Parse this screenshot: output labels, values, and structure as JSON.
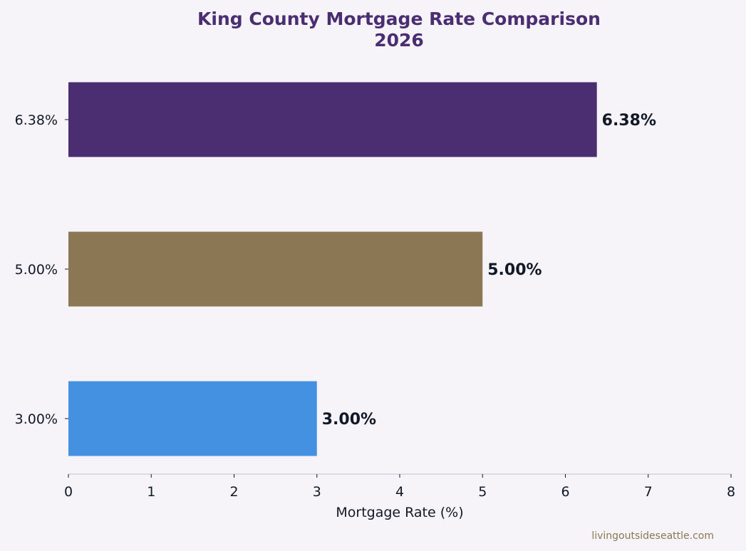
{
  "chart_data": {
    "type": "bar",
    "orientation": "horizontal",
    "title": "King County Mortgage Rate Comparison",
    "subtitle": "2026",
    "xlabel": "Mortgage Rate (%)",
    "ylabel": "",
    "xlim": [
      0,
      8
    ],
    "xticks": [
      "0",
      "1",
      "2",
      "3",
      "4",
      "5",
      "6",
      "7",
      "8"
    ],
    "categories": [
      "6.38%",
      "5.00%",
      "3.00%"
    ],
    "values": [
      6.38,
      5.0,
      3.0
    ],
    "data_labels": [
      "6.38%",
      "5.00%",
      "3.00%"
    ],
    "bar_colors": [
      "#4b2d72",
      "#8b7754",
      "#4391e0"
    ],
    "grid": false,
    "legend": "none"
  },
  "colors": {
    "background": "#f6f4f9",
    "title": "#4b2d72",
    "text": "#111827",
    "axis": "#cfcad8",
    "watermark": "#8b7754"
  },
  "footer": {
    "watermark": "livingoutsideseattle.com"
  }
}
